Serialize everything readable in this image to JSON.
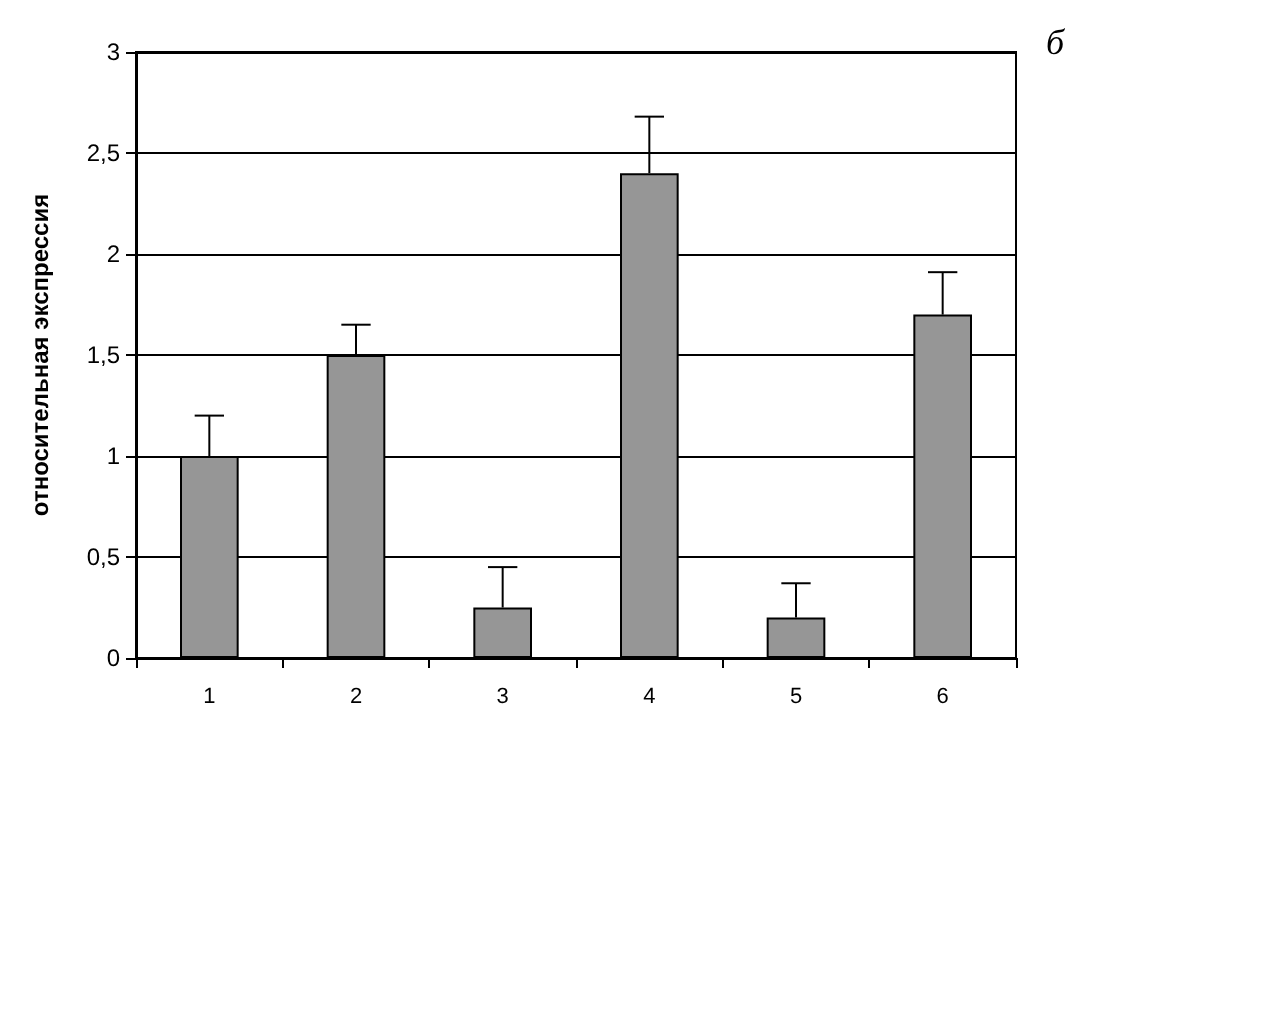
{
  "chart_data": {
    "type": "bar",
    "ylabel": "относительная экспрессия",
    "categories": [
      "1",
      "2",
      "3",
      "4",
      "5",
      "6"
    ],
    "series": [
      {
        "color": "#969696",
        "values": [
          1.0,
          1.5,
          0.25,
          2.4,
          0.2,
          1.7
        ],
        "errors": [
          [
            1.0,
            1.2
          ],
          [
            1.5,
            1.65
          ],
          [
            0.25,
            0.45
          ],
          [
            2.4,
            2.68
          ],
          [
            0.2,
            0.37
          ],
          [
            1.7,
            1.91
          ]
        ]
      }
    ],
    "ylim": [
      0,
      3
    ],
    "yticks": [
      0,
      {
        "value": 0.5,
        "label": "0,5"
      },
      1,
      {
        "value": 1.5,
        "label": "1,5"
      },
      2,
      {
        "value": 2.5,
        "label": "2,5"
      },
      3
    ],
    "grid": "y",
    "annotations": [
      "б"
    ]
  }
}
